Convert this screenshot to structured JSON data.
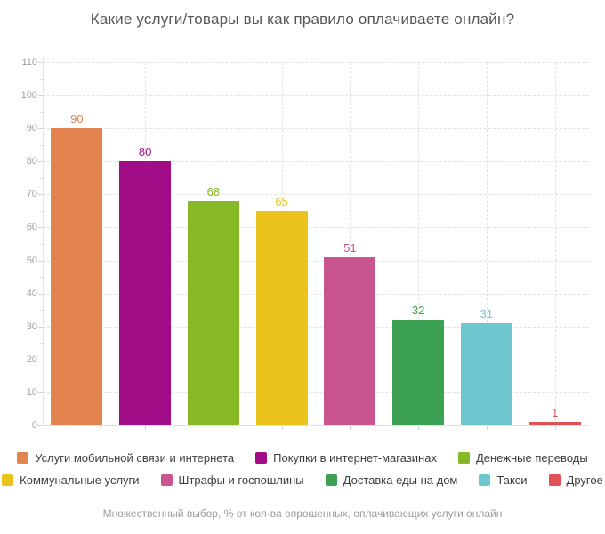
{
  "title": "Какие услуги/товары вы как правило оплачиваете онлайн?",
  "footer": "Множественный выбор, % от кол-ва опрошенных, оплачивающих услуги онлайн",
  "chart_data": {
    "type": "bar",
    "title": "Какие услуги/товары вы как правило оплачиваете онлайн?",
    "caption": "Множественный выбор, % от кол-ва опрошенных, оплачивающих услуги онлайн",
    "categories": [
      "Услуги мобильной связи и интернета",
      "Покупки в интернет-магазинах",
      "Денежные переводы",
      "Коммунальные услуги",
      "Штрафы и госпошлины",
      "Доставка еды на дом",
      "Такси",
      "Другое"
    ],
    "values": [
      90,
      80,
      68,
      65,
      51,
      32,
      31,
      1
    ],
    "colors": [
      "#e3834f",
      "#a20d87",
      "#87b825",
      "#eac41c",
      "#c85490",
      "#3da153",
      "#6ec6ce",
      "#e05254"
    ],
    "value_labels": [
      90,
      80,
      68,
      65,
      51,
      32,
      31,
      1
    ],
    "xlabel": "",
    "ylabel": "",
    "ylim": [
      0,
      110
    ],
    "ytick_step": 10,
    "ytick_minor_step": 5,
    "grid": "dashed",
    "grid_color": "#e2e2e2",
    "legend_position": "bottom",
    "legend_rows": [
      3,
      5
    ]
  }
}
